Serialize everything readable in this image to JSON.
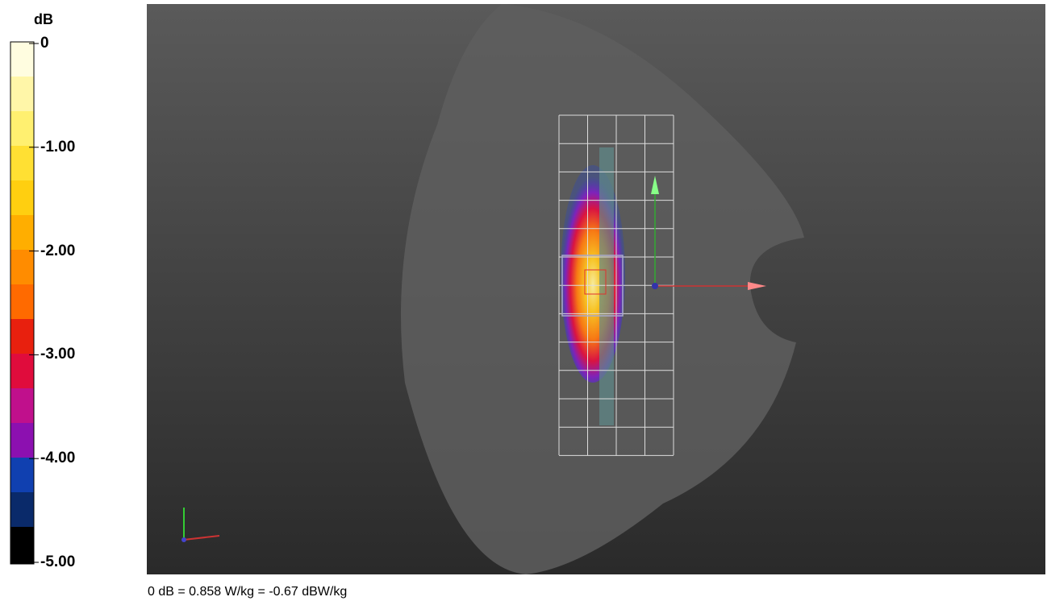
{
  "colorbar": {
    "unit": "dB",
    "ticks": [
      "0",
      "-1.00",
      "-2.00",
      "-3.00",
      "-4.00",
      "-5.00"
    ]
  },
  "footer": "0 dB = 0.858 W/kg = -0.67 dBW/kg"
}
